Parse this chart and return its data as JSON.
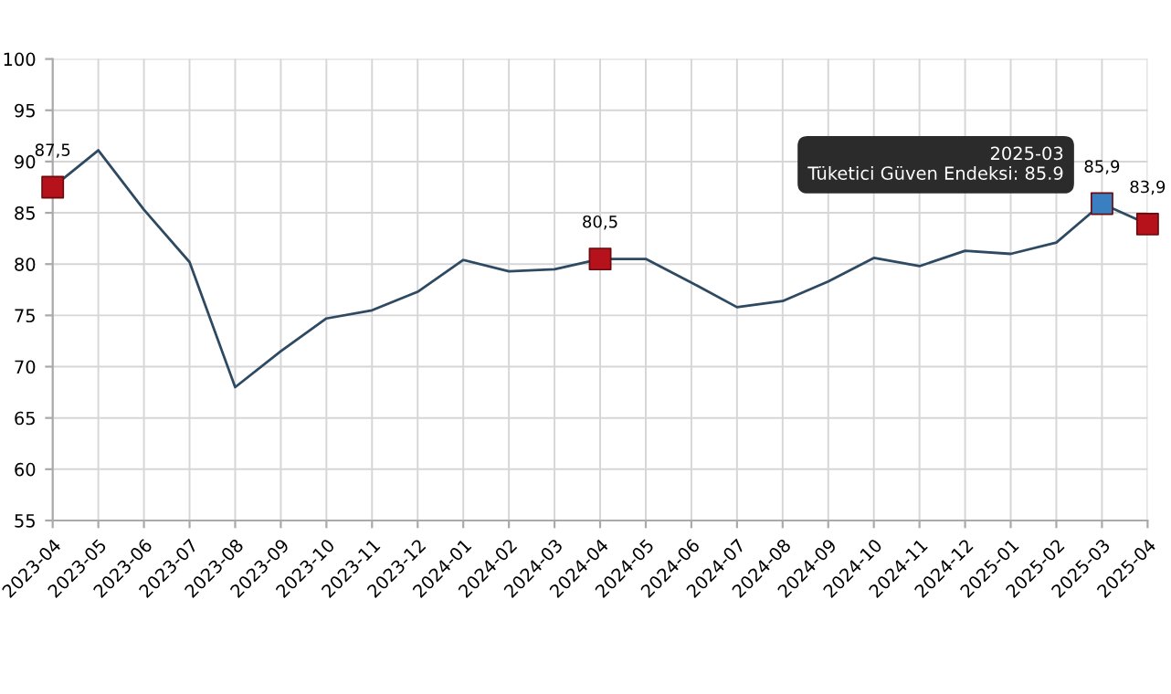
{
  "chart_data": {
    "type": "line",
    "categories": [
      "2023-04",
      "2023-05",
      "2023-06",
      "2023-07",
      "2023-08",
      "2023-09",
      "2023-10",
      "2023-11",
      "2023-12",
      "2024-01",
      "2024-02",
      "2024-03",
      "2024-04",
      "2024-05",
      "2024-06",
      "2024-07",
      "2024-08",
      "2024-09",
      "2024-10",
      "2024-11",
      "2024-12",
      "2025-01",
      "2025-02",
      "2025-03",
      "2025-04"
    ],
    "series": [
      {
        "color": "#2e4a62",
        "values": [
          87.5,
          91.1,
          85.3,
          80.2,
          68.0,
          71.5,
          74.7,
          75.5,
          77.3,
          80.4,
          79.3,
          79.5,
          80.5,
          80.5,
          78.2,
          75.8,
          76.4,
          78.3,
          80.6,
          79.8,
          81.3,
          81.0,
          82.1,
          85.9,
          83.9
        ]
      },
      {
        "type": "scatter",
        "marker": "square",
        "values": [
          87.5,
          null,
          null,
          null,
          null,
          null,
          null,
          null,
          null,
          null,
          null,
          null,
          80.5,
          null,
          null,
          null,
          null,
          null,
          null,
          null,
          null,
          null,
          null,
          85.9,
          83.9
        ],
        "colors": [
          "#b5121b",
          null,
          null,
          null,
          null,
          null,
          null,
          null,
          null,
          null,
          null,
          null,
          "#b5121b",
          null,
          null,
          null,
          null,
          null,
          null,
          null,
          null,
          null,
          null,
          "#3a7fc1",
          "#b5121b"
        ],
        "value_labels": [
          "87,5",
          null,
          null,
          null,
          null,
          null,
          null,
          null,
          null,
          null,
          null,
          null,
          "80,5",
          null,
          null,
          null,
          null,
          null,
          null,
          null,
          null,
          null,
          null,
          "85,9",
          "83,9"
        ]
      }
    ],
    "ylim": [
      55,
      100
    ],
    "yticks": [
      55,
      60,
      65,
      70,
      75,
      80,
      85,
      90,
      95,
      100
    ],
    "grid": true,
    "legend": false,
    "annotations": [
      {
        "text": "2025-03\nTüketici Güven Endeksi: 85.9",
        "x": "2025-03",
        "y": 85.9
      }
    ]
  }
}
